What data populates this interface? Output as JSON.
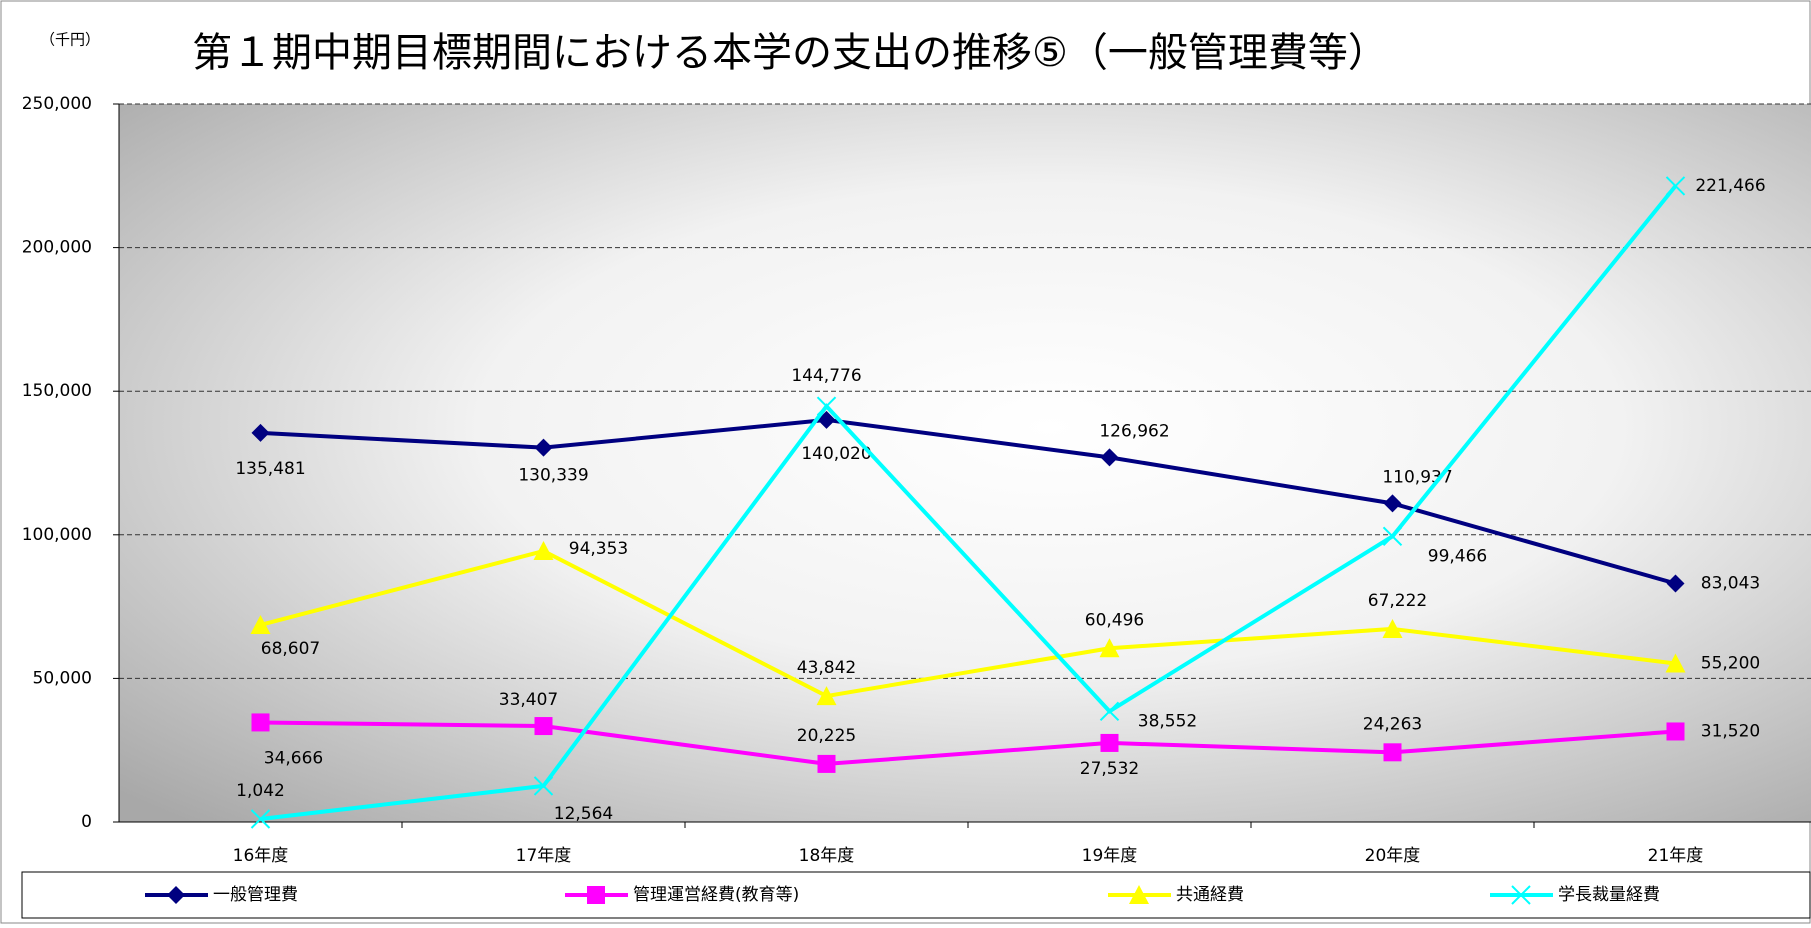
{
  "chart_data": {
    "type": "line",
    "title": "第１期中期目標期間における本学の支出の推移⑤（一般管理費等）",
    "y_unit": "（千円）",
    "categories": [
      "16年度",
      "17年度",
      "18年度",
      "19年度",
      "20年度",
      "21年度"
    ],
    "series": [
      {
        "name": "一般管理費",
        "color": "#000080",
        "marker": "diamond",
        "values": [
          135481,
          130339,
          140020,
          126962,
          110937,
          83043
        ],
        "value_labels": [
          "135,481",
          "130,339",
          "140,020",
          "126,962",
          "110,937",
          "83,043"
        ]
      },
      {
        "name": "管理運営経費(教育等)",
        "color": "#ff00ff",
        "marker": "square",
        "values": [
          34666,
          33407,
          20225,
          27532,
          24263,
          31520
        ],
        "value_labels": [
          "34,666",
          "33,407",
          "20,225",
          "27,532",
          "24,263",
          "31,520"
        ]
      },
      {
        "name": "共通経費",
        "color": "#ffff00",
        "marker": "triangle",
        "values": [
          68607,
          94353,
          43842,
          60496,
          67222,
          55200
        ],
        "value_labels": [
          "68,607",
          "94,353",
          "43,842",
          "60,496",
          "67,222",
          "55,200"
        ]
      },
      {
        "name": "学長裁量経費",
        "color": "#00ffff",
        "marker": "x",
        "values": [
          1042,
          12564,
          144776,
          38552,
          99466,
          221466
        ],
        "value_labels": [
          "1,042",
          "12,564",
          "144,776",
          "38,552",
          "99,466",
          "221,466"
        ]
      }
    ],
    "ylim": [
      0,
      250000
    ],
    "yticks": [
      0,
      {
        "value": 50000,
        "label": "50,000"
      },
      {
        "value": 100000,
        "label": "100,000"
      },
      {
        "value": 150000,
        "label": "150,000"
      },
      {
        "value": 200000,
        "label": "200,000"
      },
      {
        "value": 250000,
        "label": "250,000"
      }
    ],
    "grid": true,
    "legend": "bottom"
  }
}
